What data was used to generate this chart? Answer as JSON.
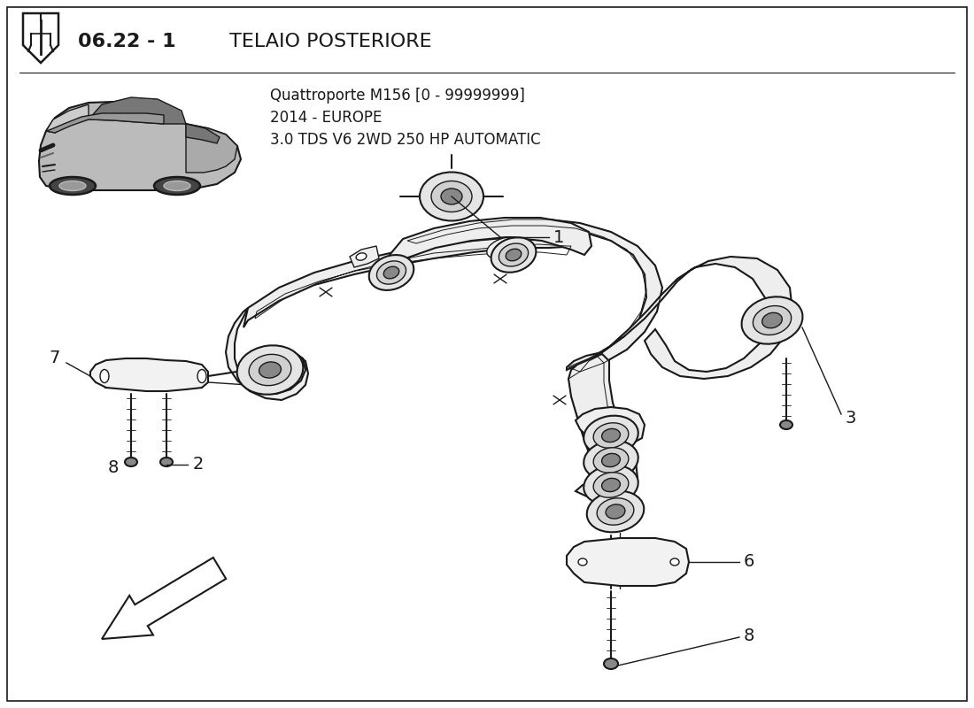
{
  "title_bold": "06.22 - 1",
  "title_normal": " TELAIO POSTERIORE",
  "subtitle_line1": "Quattroporte M156 [0 - 99999999]",
  "subtitle_line2": "2014 - EUROPE",
  "subtitle_line3": "3.0 TDS V6 2WD 250 HP AUTOMATIC",
  "bg_color": "#ffffff",
  "col": "#1a1a1a",
  "figsize": [
    11.0,
    8.0
  ],
  "dpi": 100
}
